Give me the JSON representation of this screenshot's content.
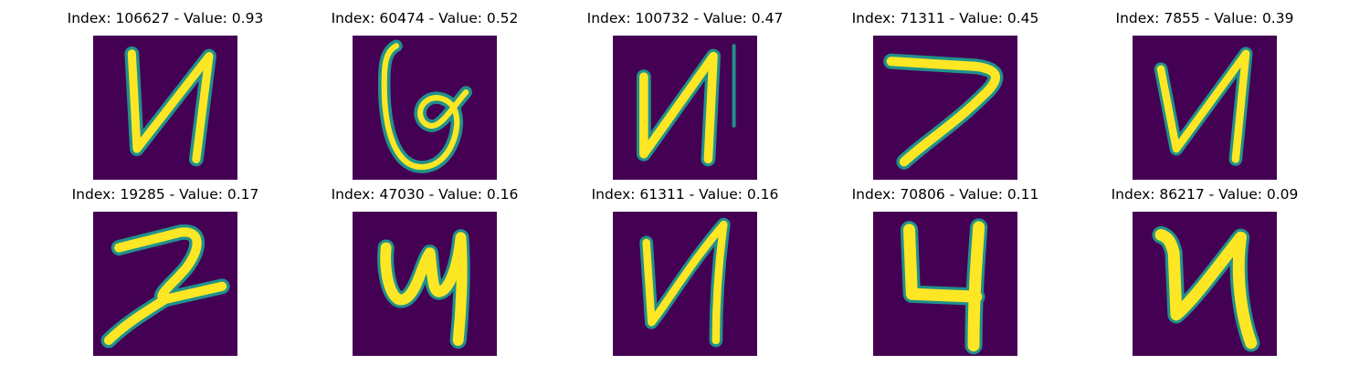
{
  "colors": {
    "background": "#ffffff",
    "image_bg": "#440154",
    "stroke_mid": "#21918c",
    "stroke_bright": "#fde725"
  },
  "panels": [
    {
      "title": "Index: 106627 - Value: 0.93",
      "glyph": "N-like handwritten character (mirrored)"
    },
    {
      "title": "Index: 60474 - Value: 0.52",
      "glyph": "G-like handwritten character"
    },
    {
      "title": "Index: 100732 - Value: 0.47",
      "glyph": "N-like handwritten character (mirrored)"
    },
    {
      "title": "Index: 71311 - Value: 0.45",
      "glyph": "7-like handwritten character"
    },
    {
      "title": "Index: 7855 - Value: 0.39",
      "glyph": "N-like handwritten character (mirrored)"
    },
    {
      "title": "Index: 19285 - Value: 0.17",
      "glyph": "Z-like handwritten character"
    },
    {
      "title": "Index: 47030 - Value: 0.16",
      "glyph": "y-like handwritten character"
    },
    {
      "title": "Index: 61311 - Value: 0.16",
      "glyph": "N-like handwritten character (mirrored)"
    },
    {
      "title": "Index: 70806 - Value: 0.11",
      "glyph": "4-like handwritten character"
    },
    {
      "title": "Index: 86217 - Value: 0.09",
      "glyph": "N-like handwritten character (mirrored)"
    }
  ]
}
